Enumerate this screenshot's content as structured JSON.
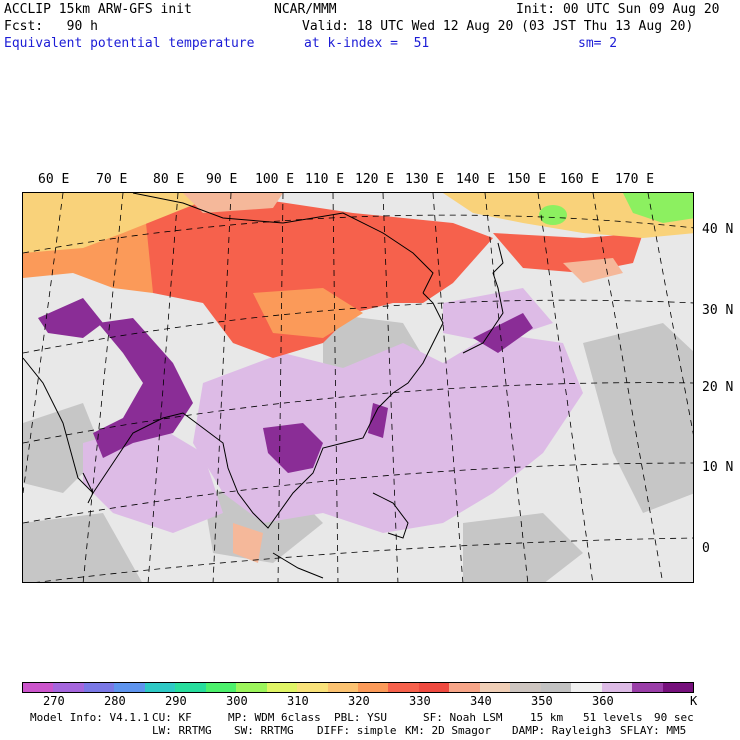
{
  "header": {
    "model": "ACCLIP 15km ARW-GFS init",
    "center": "NCAR/MMM",
    "init": "Init: 00 UTC Sun 09 Aug 20",
    "fcst": "Fcst:   90 h",
    "valid": "Valid: 18 UTC Wed 12 Aug 20 (03 JST Thu 13 Aug 20)",
    "field": "Equivalent potential temperature",
    "level": "at k-index =  51",
    "smooth": "sm= 2"
  },
  "map": {
    "lon_labels": [
      "60 E",
      "70 E",
      "80 E",
      "90 E",
      "100 E",
      "110 E",
      "120 E",
      "130 E",
      "140 E",
      "150 E",
      "160 E",
      "170 E"
    ],
    "lat_labels": [
      "40 N",
      "30 N",
      "20 N",
      "10 N",
      "0"
    ]
  },
  "colorbar": {
    "colors": [
      "#cc55cc",
      "#a566dd",
      "#7a78e6",
      "#5e94ee",
      "#2ec9c5",
      "#27dd9d",
      "#4cf06c",
      "#9cf55c",
      "#e0f566",
      "#f9e27a",
      "#fbc271",
      "#fb9a59",
      "#f6614c",
      "#ef4a40",
      "#f7a588",
      "#f0cfb7",
      "#cdc5c0",
      "#c2c2c2",
      "#f0f0f0",
      "#ddbbe6",
      "#9a3ea8",
      "#76107c"
    ],
    "labels": [
      "270",
      "280",
      "290",
      "300",
      "310",
      "320",
      "330",
      "340",
      "350",
      "360",
      "K"
    ]
  },
  "footer": {
    "line1": {
      "info": "Model Info: V4.1.1",
      "cu": "CU: KF",
      "mp": "MP: WDM 6class",
      "pbl": "PBL: YSU",
      "sf": "SF: Noah LSM",
      "res": "15 km",
      "levels": "51 levels",
      "dt": "90 sec"
    },
    "line2": {
      "lw": "LW: RRTMG",
      "sw": "SW: RRTMG",
      "diff": "DIFF: simple",
      "km": "KM: 2D Smagor",
      "damp": "DAMP: Rayleigh3",
      "sflay": "SFLAY: MM5"
    }
  }
}
